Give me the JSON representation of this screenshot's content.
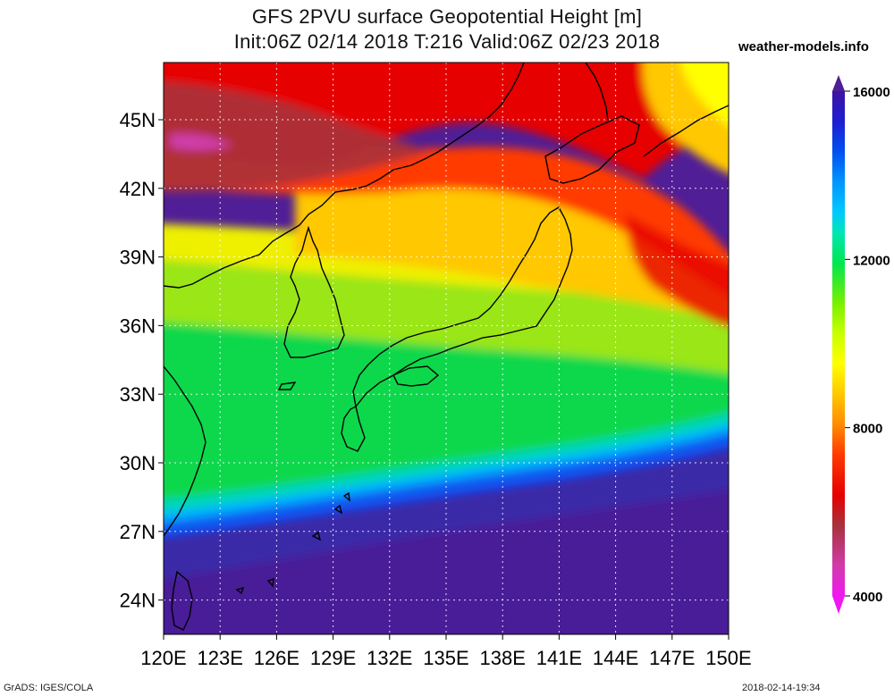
{
  "title": {
    "line1": "GFS 2PVU surface Geopotential Height [m]",
    "line2": "Init:06Z 02/14 2018 T:216 Valid:06Z 02/23 2018"
  },
  "brand": "weather-models.info",
  "footer": {
    "left": "GrADS: IGES/COLA",
    "right": "2018-02-14-19:34"
  },
  "map": {
    "lat_labels": [
      "45N",
      "42N",
      "39N",
      "36N",
      "33N",
      "30N",
      "27N",
      "24N"
    ],
    "lon_labels": [
      "120E",
      "123E",
      "126E",
      "129E",
      "132E",
      "135E",
      "138E",
      "141E",
      "144E",
      "147E",
      "150E"
    ],
    "lat_range": [
      22.5,
      47.5
    ],
    "lon_range": [
      120,
      150
    ],
    "grid": "dotted"
  },
  "colorbar": {
    "labels": [
      "16000",
      "12000",
      "8000",
      "4000"
    ],
    "min": 4000,
    "max": 16000,
    "colors": [
      "#f018f0",
      "#d03caa",
      "#a8323c",
      "#e60000",
      "#ff3a00",
      "#ff8c00",
      "#ffc800",
      "#ffff00",
      "#c8ff00",
      "#78f000",
      "#00e650",
      "#00e6b4",
      "#00c8ff",
      "#0096ff",
      "#0050f0",
      "#1e1ed2",
      "#3c14a0",
      "#501e96"
    ]
  }
}
